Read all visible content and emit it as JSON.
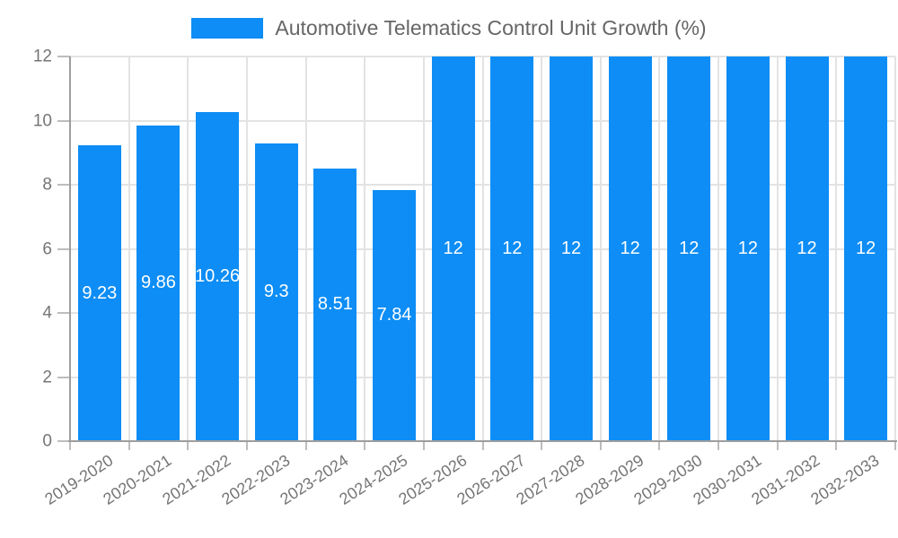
{
  "chart_data": {
    "type": "bar",
    "title": "Automotive Telematics Control Unit Growth (%)",
    "legend": "Automotive Telematics Control Unit Growth (%)",
    "legend_position": "top-center",
    "categories": [
      "2019-2020",
      "2020-2021",
      "2021-2022",
      "2022-2023",
      "2023-2024",
      "2024-2025",
      "2025-2026",
      "2026-2027",
      "2027-2028",
      "2028-2029",
      "2029-2030",
      "2030-2031",
      "2031-2032",
      "2032-2033"
    ],
    "values": [
      9.23,
      9.86,
      10.26,
      9.3,
      8.51,
      7.84,
      12,
      12,
      12,
      12,
      12,
      12,
      12,
      12
    ],
    "yticks": [
      0,
      2,
      4,
      6,
      8,
      10,
      12
    ],
    "ylim": [
      0,
      12
    ],
    "xlabel": "",
    "ylabel": "",
    "grid": true,
    "colors": {
      "bar": "#0d8df5",
      "grid": "#e3e3e3",
      "axis": "#9e9e9e",
      "tick": "#bdbdbd",
      "tick_text": "#757575",
      "legend_text": "#666666",
      "value_label": "#ffffff",
      "background": "#ffffff"
    }
  }
}
